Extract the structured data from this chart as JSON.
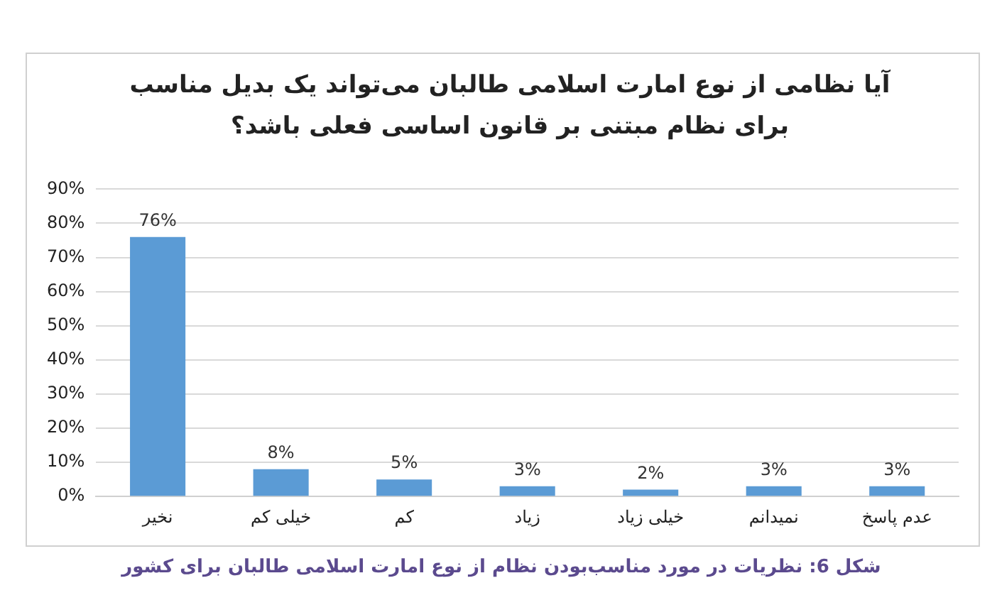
{
  "chart_data": {
    "type": "bar",
    "title": "آیا نظامی از نوع امارت اسلامی طالبان می‌تواند یک بدیل  مناسب برای نظام مبتنی بر قانون اساسی فعلی باشد؟",
    "categories": [
      "نخیر",
      "خیلی کم",
      "کم",
      "زیاد",
      "خیلی زیاد",
      "نمیدانم",
      "عدم پاسخ"
    ],
    "values": [
      76,
      8,
      5,
      3,
      2,
      3,
      3
    ],
    "value_labels": [
      "76%",
      "8%",
      "5%",
      "3%",
      "2%",
      "3%",
      "3%"
    ],
    "color": "#5b9bd5",
    "ylim": [
      0,
      90
    ],
    "yticks": [
      {
        "value": 0,
        "label": "0%"
      },
      {
        "value": 10,
        "label": "10%"
      },
      {
        "value": 20,
        "label": "20%"
      },
      {
        "value": 30,
        "label": "30%"
      },
      {
        "value": 40,
        "label": "40%"
      },
      {
        "value": 50,
        "label": "50%"
      },
      {
        "value": 60,
        "label": "60%"
      },
      {
        "value": 70,
        "label": "70%"
      },
      {
        "value": 80,
        "label": "80%"
      },
      {
        "value": 90,
        "label": "90%"
      }
    ],
    "grid": "y",
    "annotations": [
      "شکل 6: نظریات در مورد مناسب‌بودن نظام از نوع امارت اسلامی طالبان برای کشور"
    ]
  }
}
